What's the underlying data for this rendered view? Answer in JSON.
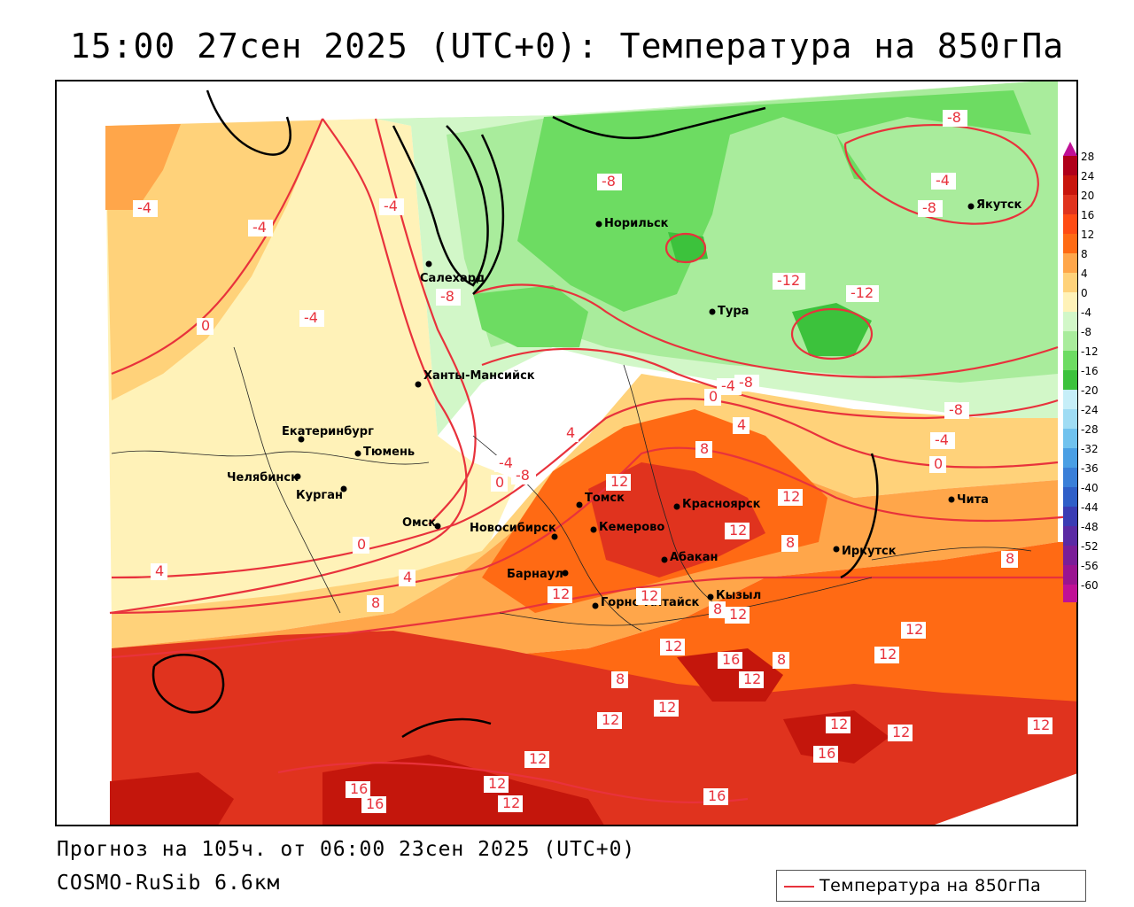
{
  "title": "15:00 27сен 2025 (UTC+0): Температура на 850гПа",
  "footer": {
    "forecast": "Прогноз на 105ч. от 06:00 23сен 2025 (UTC+0)",
    "model": "COSMO-RuSib 6.6км"
  },
  "legend": {
    "label": "Температура на 850гПа",
    "color": "#e8323c"
  },
  "colors": {
    "isoline": "#e8323c",
    "hot": "#e0331e",
    "very_hot": "#c4160c",
    "warm": "#ff6a14",
    "mild": "#ffa64a",
    "light_warm": "#ffd27a",
    "pale": "#fff2b8",
    "cool": "#d2f7c8",
    "green_light": "#a9ec9c",
    "green": "#6ddc62",
    "green_dark": "#3cc23c"
  },
  "scale": {
    "labels": [
      "28",
      "24",
      "20",
      "16",
      "12",
      "8",
      "4",
      "0",
      "-4",
      "-8",
      "-12",
      "-16",
      "-20",
      "-24",
      "-28",
      "-32",
      "-36",
      "-40",
      "-44",
      "-48",
      "-52",
      "-56",
      "-60"
    ],
    "colors": [
      "#b0001a",
      "#c8150d",
      "#e0331e",
      "#ff4b14",
      "#ff6a14",
      "#ffa64a",
      "#ffd27a",
      "#fff2b8",
      "#d2f7c8",
      "#a9ec9c",
      "#6ddc62",
      "#3cc23c",
      "#c6eef8",
      "#9fdcf4",
      "#70c2ee",
      "#4a9fe4",
      "#3a7fd8",
      "#2f5fc8",
      "#3a3cb4",
      "#5a2aa4",
      "#7a1e98",
      "#9a1490",
      "#c01096"
    ]
  },
  "cities": [
    {
      "name": "Норильск"
    },
    {
      "name": "Якутск"
    },
    {
      "name": "Салехард"
    },
    {
      "name": "Тура"
    },
    {
      "name": "Ханты-Мансийск"
    },
    {
      "name": "Екатеринбург"
    },
    {
      "name": "Тюмень"
    },
    {
      "name": "Челябинск"
    },
    {
      "name": "Курган"
    },
    {
      "name": "Омск"
    },
    {
      "name": "Новосибирск"
    },
    {
      "name": "Томск"
    },
    {
      "name": "Кемерово"
    },
    {
      "name": "Красноярск"
    },
    {
      "name": "Абакан"
    },
    {
      "name": "Барнаул"
    },
    {
      "name": "Горно-Алтайск"
    },
    {
      "name": "Кызыл"
    },
    {
      "name": "Иркутск"
    },
    {
      "name": "Чита"
    }
  ],
  "isolabels": [
    {
      "value": "-8"
    },
    {
      "value": "-4"
    },
    {
      "value": "-8"
    },
    {
      "value": "-8"
    },
    {
      "value": "-4"
    },
    {
      "value": "-4"
    },
    {
      "value": "-8"
    },
    {
      "value": "-12"
    },
    {
      "value": "-12"
    },
    {
      "value": "-4"
    },
    {
      "value": "-4"
    },
    {
      "value": "-8"
    },
    {
      "value": "-4"
    },
    {
      "value": "-8"
    },
    {
      "value": "0"
    },
    {
      "value": "4"
    },
    {
      "value": "-8"
    },
    {
      "value": "8"
    },
    {
      "value": "-4"
    },
    {
      "value": "0"
    },
    {
      "value": "-4"
    },
    {
      "value": "0"
    },
    {
      "value": "4"
    },
    {
      "value": "12"
    },
    {
      "value": "12"
    },
    {
      "value": "0"
    },
    {
      "value": "0"
    },
    {
      "value": "4"
    },
    {
      "value": "4"
    },
    {
      "value": "8"
    },
    {
      "value": "12"
    },
    {
      "value": "12"
    },
    {
      "value": "8"
    },
    {
      "value": "8"
    },
    {
      "value": "8"
    },
    {
      "value": "12"
    },
    {
      "value": "12"
    },
    {
      "value": "12"
    },
    {
      "value": "12"
    },
    {
      "value": "12"
    },
    {
      "value": "12"
    },
    {
      "value": "16"
    },
    {
      "value": "12"
    },
    {
      "value": "8"
    },
    {
      "value": "12"
    },
    {
      "value": "8"
    },
    {
      "value": "12"
    },
    {
      "value": "12"
    },
    {
      "value": "12"
    },
    {
      "value": "16"
    },
    {
      "value": "12"
    },
    {
      "value": "16"
    },
    {
      "value": "16"
    },
    {
      "value": "12"
    },
    {
      "value": "16"
    },
    {
      "value": "12"
    },
    {
      "value": "12"
    }
  ]
}
